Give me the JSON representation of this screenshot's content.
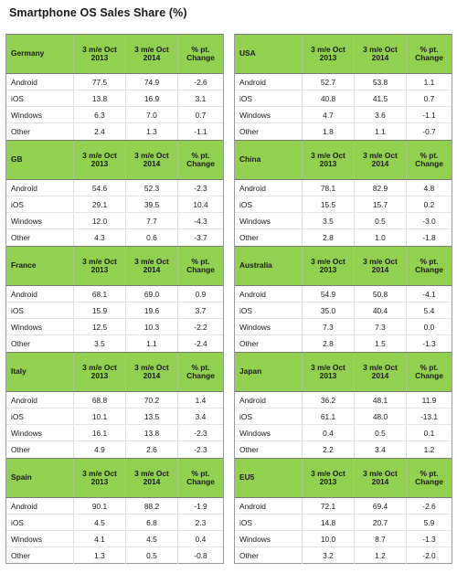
{
  "title": "Smartphone OS Sales Share (%)",
  "colors": {
    "header_green": "#92d050",
    "grid_line": "#9a9a9a"
  },
  "chart_data": {
    "type": "table",
    "title": "Smartphone OS Sales Share (%)",
    "columns": [
      "3 m/e Oct\n2013",
      "3 m/e Oct\n2014",
      "% pt.\nChange"
    ],
    "tables": [
      {
        "region": "Germany",
        "rows": [
          {
            "os": "Android",
            "v2013": "77.5",
            "v2014": "74.9",
            "change": "-2.6"
          },
          {
            "os": "iOS",
            "v2013": "13.8",
            "v2014": "16.9",
            "change": "3.1"
          },
          {
            "os": "Windows",
            "v2013": "6.3",
            "v2014": "7.0",
            "change": "0.7"
          },
          {
            "os": "Other",
            "v2013": "2.4",
            "v2014": "1.3",
            "change": "-1.1"
          }
        ]
      },
      {
        "region": "USA",
        "rows": [
          {
            "os": "Android",
            "v2013": "52.7",
            "v2014": "53.8",
            "change": "1.1"
          },
          {
            "os": "iOS",
            "v2013": "40.8",
            "v2014": "41.5",
            "change": "0.7"
          },
          {
            "os": "Windows",
            "v2013": "4.7",
            "v2014": "3.6",
            "change": "-1.1"
          },
          {
            "os": "Other",
            "v2013": "1.8",
            "v2014": "1.1",
            "change": "-0.7"
          }
        ]
      },
      {
        "region": "GB",
        "rows": [
          {
            "os": "Android",
            "v2013": "54.6",
            "v2014": "52.3",
            "change": "-2.3"
          },
          {
            "os": "iOS",
            "v2013": "29.1",
            "v2014": "39.5",
            "change": "10.4"
          },
          {
            "os": "Windows",
            "v2013": "12.0",
            "v2014": "7.7",
            "change": "-4.3"
          },
          {
            "os": "Other",
            "v2013": "4.3",
            "v2014": "0.6",
            "change": "-3.7"
          }
        ]
      },
      {
        "region": "China",
        "rows": [
          {
            "os": "Android",
            "v2013": "78.1",
            "v2014": "82.9",
            "change": "4.8"
          },
          {
            "os": "iOS",
            "v2013": "15.5",
            "v2014": "15.7",
            "change": "0.2"
          },
          {
            "os": "Windows",
            "v2013": "3.5",
            "v2014": "0.5",
            "change": "-3.0"
          },
          {
            "os": "Other",
            "v2013": "2.8",
            "v2014": "1.0",
            "change": "-1.8"
          }
        ]
      },
      {
        "region": "France",
        "rows": [
          {
            "os": "Android",
            "v2013": "68.1",
            "v2014": "69.0",
            "change": "0.9"
          },
          {
            "os": "iOS",
            "v2013": "15.9",
            "v2014": "19.6",
            "change": "3.7"
          },
          {
            "os": "Windows",
            "v2013": "12.5",
            "v2014": "10.3",
            "change": "-2.2"
          },
          {
            "os": "Other",
            "v2013": "3.5",
            "v2014": "1.1",
            "change": "-2.4"
          }
        ]
      },
      {
        "region": "Australia",
        "rows": [
          {
            "os": "Android",
            "v2013": "54.9",
            "v2014": "50.8",
            "change": "-4.1"
          },
          {
            "os": "iOS",
            "v2013": "35.0",
            "v2014": "40.4",
            "change": "5.4"
          },
          {
            "os": "Windows",
            "v2013": "7.3",
            "v2014": "7.3",
            "change": "0.0"
          },
          {
            "os": "Other",
            "v2013": "2.8",
            "v2014": "1.5",
            "change": "-1.3"
          }
        ]
      },
      {
        "region": "Italy",
        "rows": [
          {
            "os": "Android",
            "v2013": "68.8",
            "v2014": "70.2",
            "change": "1.4"
          },
          {
            "os": "iOS",
            "v2013": "10.1",
            "v2014": "13.5",
            "change": "3.4"
          },
          {
            "os": "Windows",
            "v2013": "16.1",
            "v2014": "13.8",
            "change": "-2.3"
          },
          {
            "os": "Other",
            "v2013": "4.9",
            "v2014": "2.6",
            "change": "-2.3"
          }
        ]
      },
      {
        "region": "Japan",
        "rows": [
          {
            "os": "Android",
            "v2013": "36.2",
            "v2014": "48.1",
            "change": "11.9"
          },
          {
            "os": "iOS",
            "v2013": "61.1",
            "v2014": "48.0",
            "change": "-13.1"
          },
          {
            "os": "Windows",
            "v2013": "0.4",
            "v2014": "0.5",
            "change": "0.1"
          },
          {
            "os": "Other",
            "v2013": "2.2",
            "v2014": "3.4",
            "change": "1.2"
          }
        ]
      },
      {
        "region": "Spain",
        "rows": [
          {
            "os": "Android",
            "v2013": "90.1",
            "v2014": "88.2",
            "change": "-1.9"
          },
          {
            "os": "iOS",
            "v2013": "4.5",
            "v2014": "6.8",
            "change": "2.3"
          },
          {
            "os": "Windows",
            "v2013": "4.1",
            "v2014": "4.5",
            "change": "0.4"
          },
          {
            "os": "Other",
            "v2013": "1.3",
            "v2014": "0.5",
            "change": "-0.8"
          }
        ]
      },
      {
        "region": "EU5",
        "rows": [
          {
            "os": "Android",
            "v2013": "72.1",
            "v2014": "69.4",
            "change": "-2.6"
          },
          {
            "os": "iOS",
            "v2013": "14.8",
            "v2014": "20.7",
            "change": "5.9"
          },
          {
            "os": "Windows",
            "v2013": "10.0",
            "v2014": "8.7",
            "change": "-1.3"
          },
          {
            "os": "Other",
            "v2013": "3.2",
            "v2014": "1.2",
            "change": "-2.0"
          }
        ]
      }
    ]
  }
}
